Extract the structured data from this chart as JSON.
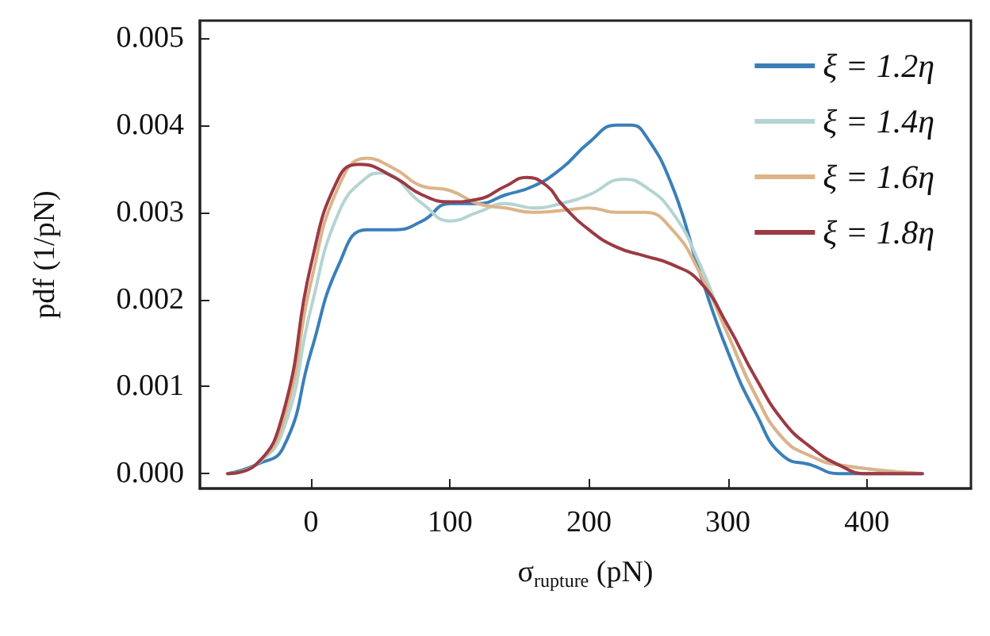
{
  "chart_data": {
    "type": "line",
    "xlabel": "σ$_{rupture}$ (pN)",
    "ylabel": "pdf (1/pN)",
    "xlim": [
      -80,
      475
    ],
    "ylim": [
      -0.00017,
      0.0052
    ],
    "xticks": [
      0,
      100,
      200,
      300,
      400
    ],
    "yticks": [
      {
        "value": 0,
        "label": "0.000"
      },
      {
        "value": 0.001,
        "label": "0.001"
      },
      {
        "value": 0.002,
        "label": "0.002"
      },
      {
        "value": 0.003,
        "label": "0.003"
      },
      {
        "value": 0.004,
        "label": "0.004"
      },
      {
        "value": 0.005,
        "label": "0.005"
      }
    ],
    "grid": false,
    "legend": "top right",
    "marker": "none",
    "line_style": "solid",
    "series": [
      {
        "name": "ξ = 1.2η",
        "color": "#3b7fb8",
        "x": [
          -60,
          -40,
          -20,
          0,
          20,
          40,
          60,
          80,
          100,
          120,
          140,
          160,
          180,
          200,
          220,
          230,
          240,
          260,
          280,
          300,
          320,
          340,
          360,
          380,
          440
        ],
        "values": [
          0,
          0.0001,
          0.0003,
          0.0014,
          0.0024,
          0.0028,
          0.0028,
          0.0029,
          0.0031,
          0.0031,
          0.0032,
          0.0033,
          0.0035,
          0.0038,
          0.004,
          0.004,
          0.0039,
          0.0033,
          0.0023,
          0.0014,
          0.0007,
          0.0002,
          0.0001,
          0,
          0
        ]
      },
      {
        "name": "ξ = 1.4η",
        "color": "#b4d4d2",
        "x": [
          -60,
          -40,
          -20,
          0,
          20,
          40,
          50,
          80,
          100,
          120,
          140,
          160,
          180,
          200,
          225,
          240,
          260,
          280,
          300,
          320,
          340,
          360,
          380,
          440
        ],
        "values": [
          0,
          0.0001,
          0.0005,
          0.0019,
          0.003,
          0.0034,
          0.00345,
          0.0031,
          0.0029,
          0.003,
          0.0031,
          0.00305,
          0.0031,
          0.0032,
          0.00338,
          0.0033,
          0.003,
          0.0024,
          0.0016,
          0.0009,
          0.0004,
          0.0002,
          0.0001,
          0
        ]
      },
      {
        "name": "ξ = 1.6η",
        "color": "#dcb48a",
        "x": [
          -60,
          -40,
          -20,
          0,
          20,
          40,
          60,
          80,
          100,
          120,
          140,
          160,
          180,
          200,
          220,
          240,
          260,
          280,
          300,
          320,
          340,
          360,
          380,
          440
        ],
        "values": [
          0,
          0.0001,
          0.0006,
          0.0022,
          0.0033,
          0.00362,
          0.0035,
          0.0033,
          0.00325,
          0.0031,
          0.00305,
          0.003,
          0.00302,
          0.00305,
          0.003,
          0.003,
          0.0028,
          0.0023,
          0.0016,
          0.0009,
          0.0004,
          0.0002,
          0.0001,
          0
        ]
      },
      {
        "name": "ξ = 1.8η",
        "color": "#9c3a44",
        "x": [
          -60,
          -40,
          -20,
          0,
          20,
          35,
          60,
          80,
          100,
          120,
          140,
          155,
          170,
          180,
          200,
          220,
          240,
          260,
          280,
          300,
          320,
          340,
          360,
          380,
          400,
          440
        ],
        "values": [
          0,
          0.0001,
          0.0007,
          0.0024,
          0.0034,
          0.00355,
          0.0034,
          0.0032,
          0.00312,
          0.00315,
          0.0033,
          0.0034,
          0.0033,
          0.0031,
          0.0028,
          0.0026,
          0.0025,
          0.0024,
          0.0022,
          0.0017,
          0.0011,
          0.0006,
          0.0003,
          0.0001,
          0,
          0
        ]
      }
    ]
  }
}
